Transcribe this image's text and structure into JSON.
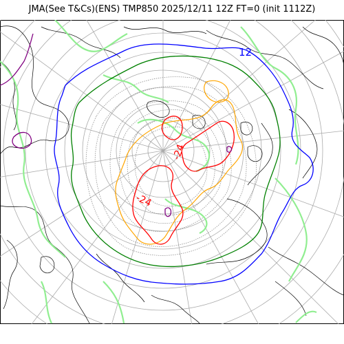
{
  "map": {
    "title": "JMA(See T&Cs)(ENS) TMP850 2025/12/11 12Z FT=0 (init 1112Z)",
    "projection": "north-polar-stereographic",
    "contour_labels": [
      {
        "text": "12",
        "color": "#0000ff"
      },
      {
        "text": "-24",
        "color": "#ff0000"
      },
      {
        "text": "-24",
        "color": "#ff0000"
      }
    ],
    "contour_colors": {
      "grid": "#aaaaaa",
      "coast": "#000000",
      "zero_line": "#90ee90",
      "blue_line": "#0000ff",
      "green_line": "#008000",
      "orange_line": "#ffa500",
      "red_line": "#ff0000",
      "purple_line": "#800080",
      "cold_isotherms": "#808080"
    }
  }
}
